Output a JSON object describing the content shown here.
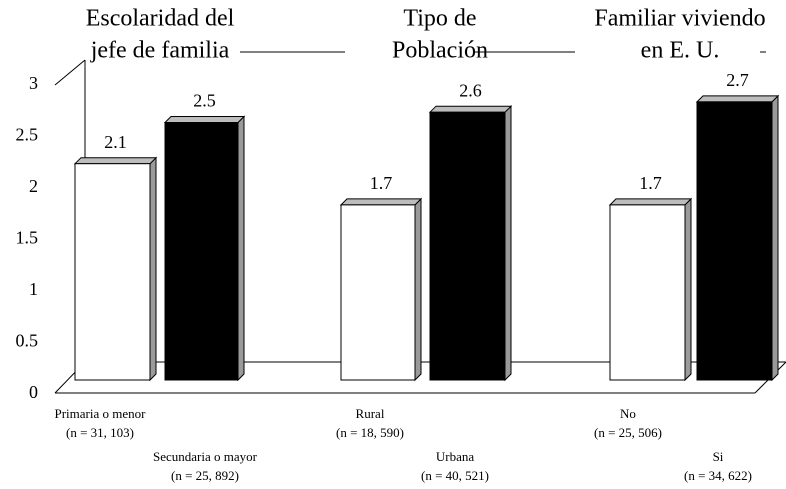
{
  "chart_data": {
    "type": "bar",
    "group_titles": [
      [
        "Escolaridad del",
        "jefe de familia"
      ],
      [
        "Tipo de",
        "Población"
      ],
      [
        "Familiar viviendo",
        "en E. U."
      ]
    ],
    "categories": [
      "Primaria o menor",
      "Secundaria o mayor",
      "Rural",
      "Urbana",
      "No",
      "Si"
    ],
    "category_counts": [
      "(n = 31, 103)",
      "(n = 25, 892)",
      "(n = 18, 590)",
      "(n = 40, 521)",
      "(n = 25, 506)",
      "(n = 34, 622)"
    ],
    "values": [
      2.1,
      2.5,
      1.7,
      2.6,
      1.7,
      2.7
    ],
    "colors": [
      "#ffffff",
      "#000000",
      "#ffffff",
      "#000000",
      "#ffffff",
      "#000000"
    ],
    "ylim": [
      0,
      3
    ],
    "yticks": [
      0,
      0.5,
      1,
      1.5,
      2,
      2.5,
      3
    ],
    "grid": false
  }
}
